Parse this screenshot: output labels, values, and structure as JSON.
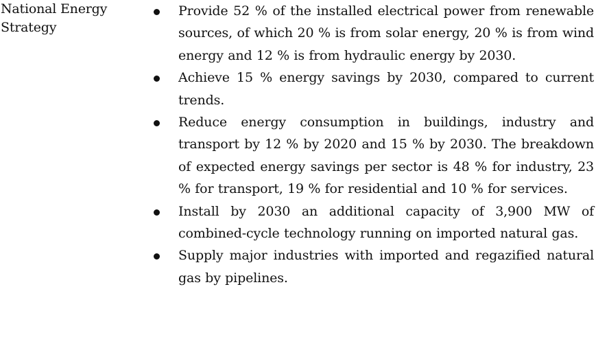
{
  "section_label": "National Energy Strategy",
  "items": [
    {
      "text": "Provide 52 % of the installed electrical power from renewable sources, of which 20 % is from solar energy, 20 % is from wind energy and 12 % is from hydraulic energy by 2030."
    },
    {
      "text": "Achieve 15 % energy savings by 2030, compared to current trends."
    },
    {
      "text": "Reduce energy consumption in buildings, industry and transport by 12 % by 2020 and 15 % by 2030. The breakdown of expected energy savings per sector is 48 % for industry, 23 % for transport, 19 % for residential and 10 % for services."
    },
    {
      "text": "Install by 2030 an additional capacity of 3,900 MW of combined-cycle technology running on imported natural gas."
    },
    {
      "text": "Supply major industries with imported and regazified natural gas by pipelines."
    }
  ]
}
